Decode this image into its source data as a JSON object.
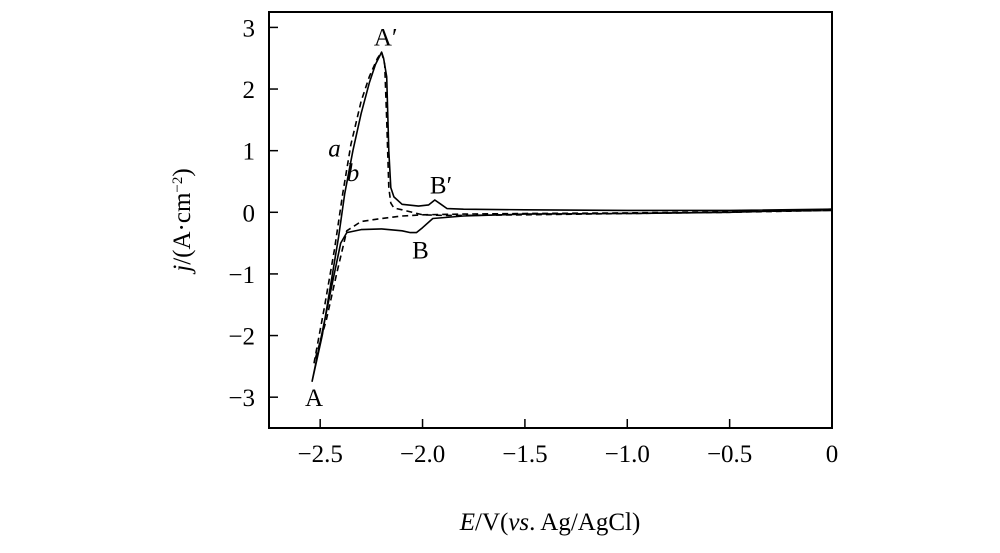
{
  "chart_data": {
    "type": "line",
    "xlabel": {
      "var": "E",
      "unit": "/V(",
      "ref_italic": "vs",
      "ref": ". Ag/AgCl)"
    },
    "ylabel": {
      "var": "j",
      "unit": "/(A·cm",
      "exp": "−2",
      "close": ")"
    },
    "xlim": [
      -2.75,
      0
    ],
    "ylim": [
      -3.5,
      3.25
    ],
    "x_ticks": [
      -2.5,
      -2.0,
      -1.5,
      -1.0,
      -0.5,
      0
    ],
    "x_tick_labels": [
      "−2.5",
      "−2.0",
      "−1.5",
      "−1.0",
      "−0.5",
      "0"
    ],
    "y_ticks": [
      3,
      2,
      1,
      0,
      -1,
      -2,
      -3
    ],
    "y_tick_labels": [
      "3",
      "2",
      "1",
      "0",
      "−1",
      "−2",
      "−3"
    ],
    "grid": false,
    "series": [
      {
        "name": "a",
        "style": "dashed",
        "color": "#000000",
        "x": [
          -2.53,
          -2.48,
          -2.43,
          -2.39,
          -2.35,
          -2.3,
          -2.26,
          -2.22,
          -2.2,
          -2.185,
          -2.175,
          -2.165,
          -2.155,
          -2.14,
          -2.1,
          -2.05,
          -2.0,
          -1.9,
          -1.8,
          -1.5,
          -1.0,
          -0.5,
          0.0,
          -0.5,
          -1.0,
          -1.5,
          -1.8,
          -2.0,
          -2.1,
          -2.2,
          -2.3,
          -2.37,
          -2.42,
          -2.47,
          -2.53
        ],
        "y": [
          -2.45,
          -1.55,
          -0.6,
          0.3,
          1.1,
          1.8,
          2.2,
          2.5,
          2.6,
          2.4,
          1.5,
          0.4,
          0.15,
          0.07,
          0.04,
          0.0,
          -0.04,
          -0.05,
          -0.05,
          -0.04,
          -0.02,
          0.0,
          0.03,
          0.01,
          -0.01,
          -0.02,
          -0.03,
          -0.04,
          -0.06,
          -0.1,
          -0.15,
          -0.3,
          -1.0,
          -1.75,
          -2.45
        ]
      },
      {
        "name": "b",
        "style": "solid",
        "color": "#000000",
        "x": [
          -2.54,
          -2.49,
          -2.45,
          -2.41,
          -2.38,
          -2.34,
          -2.3,
          -2.26,
          -2.23,
          -2.2,
          -2.19,
          -2.175,
          -2.165,
          -2.155,
          -2.14,
          -2.1,
          -2.02,
          -1.97,
          -1.94,
          -1.91,
          -1.88,
          -1.8,
          -1.5,
          -1.0,
          -0.5,
          0.0,
          -0.5,
          -1.0,
          -1.5,
          -1.8,
          -1.95,
          -2.0,
          -2.03,
          -2.06,
          -2.1,
          -2.2,
          -2.3,
          -2.37,
          -2.4,
          -2.45,
          -2.54
        ],
        "y": [
          -2.75,
          -2.0,
          -1.2,
          -0.4,
          0.3,
          1.0,
          1.6,
          2.1,
          2.4,
          2.6,
          2.5,
          2.2,
          1.0,
          0.4,
          0.25,
          0.13,
          0.1,
          0.12,
          0.2,
          0.13,
          0.06,
          0.05,
          0.04,
          0.03,
          0.03,
          0.05,
          0.0,
          -0.02,
          -0.03,
          -0.06,
          -0.1,
          -0.25,
          -0.33,
          -0.33,
          -0.3,
          -0.27,
          -0.28,
          -0.33,
          -0.5,
          -1.3,
          -2.75
        ]
      }
    ],
    "annotations": [
      {
        "id": "A",
        "text": "A",
        "x": -2.53,
        "y": -3.0,
        "style": "normal"
      },
      {
        "id": "A-prime",
        "text": "A′",
        "x": -2.18,
        "y": 2.85,
        "style": "normal"
      },
      {
        "id": "B",
        "text": "B",
        "x": -2.01,
        "y": -0.6,
        "style": "normal"
      },
      {
        "id": "B-prime",
        "text": "B′",
        "x": -1.91,
        "y": 0.45,
        "style": "normal"
      },
      {
        "id": "curve-a",
        "text": "a",
        "x": -2.43,
        "y": 1.05,
        "style": "italic"
      },
      {
        "id": "curve-b",
        "text": "b",
        "x": -2.34,
        "y": 0.65,
        "style": "italic"
      }
    ]
  }
}
